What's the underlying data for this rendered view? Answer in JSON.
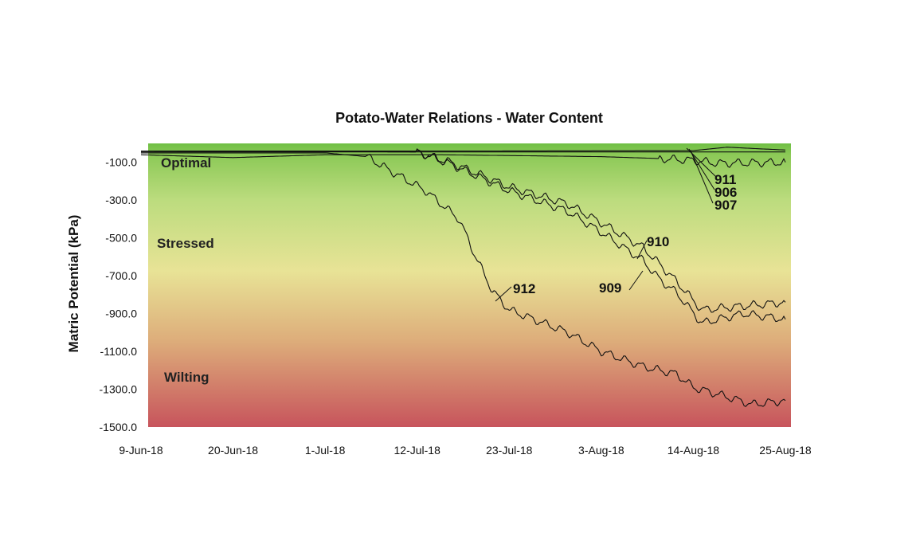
{
  "chart_data": {
    "type": "line",
    "title": "Potato-Water Relations - Water Content",
    "xlabel": "",
    "ylabel": "Matric Potential (kPa)",
    "x_ticks": [
      "9-Jun-18",
      "20-Jun-18",
      "1-Jul-18",
      "12-Jul-18",
      "23-Jul-18",
      "3-Aug-18",
      "14-Aug-18",
      "25-Aug-18"
    ],
    "y_ticks": [
      "-100.0",
      "-300.0",
      "-500.0",
      "-700.0",
      "-900.0",
      "-1100.0",
      "-1300.0",
      "-1500.0"
    ],
    "xlim": [
      "2018-06-09",
      "2018-08-25"
    ],
    "ylim": [
      -1500,
      0
    ],
    "grid": false,
    "zones": [
      "Optimal",
      "Stressed",
      "Wilting"
    ],
    "zone_colors": [
      "#77c147",
      "#e8e396",
      "#c7545c"
    ],
    "series": [
      {
        "name": "906",
        "x": [
          "2018-06-09",
          "2018-07-20",
          "2018-08-14",
          "2018-08-18",
          "2018-08-25"
        ],
        "y": [
          -40,
          -40,
          -38,
          -20,
          -35
        ]
      },
      {
        "name": "907",
        "x": [
          "2018-06-09",
          "2018-07-20",
          "2018-08-14",
          "2018-08-20",
          "2018-08-25"
        ],
        "y": [
          -45,
          -45,
          -45,
          -45,
          -45
        ]
      },
      {
        "name": "911",
        "x": [
          "2018-06-09",
          "2018-06-20",
          "2018-07-01",
          "2018-07-15",
          "2018-08-03",
          "2018-08-10",
          "2018-08-14",
          "2018-08-17",
          "2018-08-25"
        ],
        "y": [
          -60,
          -75,
          -60,
          -60,
          -70,
          -80,
          -90,
          -105,
          -100
        ]
      },
      {
        "name": "909",
        "x": [
          "2018-06-09",
          "2018-07-12",
          "2018-07-16",
          "2018-07-23",
          "2018-07-30",
          "2018-08-03",
          "2018-08-08",
          "2018-08-10",
          "2018-08-12",
          "2018-08-15",
          "2018-08-20",
          "2018-08-25"
        ],
        "y": [
          -40,
          -45,
          -110,
          -250,
          -360,
          -470,
          -620,
          -720,
          -790,
          -950,
          -900,
          -930
        ]
      },
      {
        "name": "910",
        "x": [
          "2018-06-09",
          "2018-07-12",
          "2018-07-16",
          "2018-07-23",
          "2018-07-30",
          "2018-08-03",
          "2018-08-08",
          "2018-08-10",
          "2018-08-12",
          "2018-08-15",
          "2018-08-20",
          "2018-08-25"
        ],
        "y": [
          -40,
          -45,
          -100,
          -230,
          -320,
          -420,
          -550,
          -640,
          -730,
          -880,
          -860,
          -840
        ]
      },
      {
        "name": "912",
        "x": [
          "2018-06-09",
          "2018-07-01",
          "2018-07-06",
          "2018-07-09",
          "2018-07-13",
          "2018-07-17",
          "2018-07-19",
          "2018-07-21",
          "2018-07-23",
          "2018-07-30",
          "2018-08-03",
          "2018-08-08",
          "2018-08-12",
          "2018-08-14",
          "2018-08-18",
          "2018-08-21",
          "2018-08-25"
        ],
        "y": [
          -50,
          -50,
          -70,
          -150,
          -250,
          -400,
          -600,
          -780,
          -880,
          -1000,
          -1100,
          -1180,
          -1220,
          -1290,
          -1340,
          -1380,
          -1360
        ]
      }
    ]
  }
}
